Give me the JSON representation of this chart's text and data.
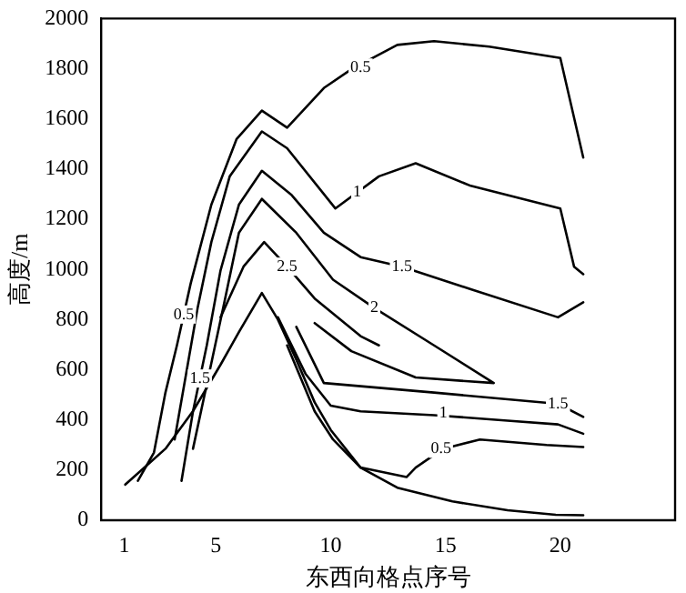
{
  "chart_data": {
    "type": "line",
    "xlabel": "东西向格点序号",
    "ylabel": "高度/m",
    "xlim": [
      0,
      25
    ],
    "xticks": [
      1,
      5,
      10,
      15,
      20
    ],
    "ylim": [
      0,
      2000
    ],
    "yticks": [
      0,
      200,
      400,
      600,
      800,
      1000,
      1200,
      1400,
      1600,
      1800,
      2000
    ],
    "grid": false,
    "legend": false,
    "marker": "none",
    "line_style": "solid",
    "series": [
      {
        "color": "#000000",
        "x": [
          1.05,
          2.8,
          4.0,
          5.2,
          6.0,
          7.0,
          7.7,
          8.5,
          9.3,
          10.0,
          11.3,
          12.9,
          15.3,
          17.7,
          19.8,
          21.0
        ],
        "values": [
          142,
          285,
          435,
          620,
          750,
          906,
          800,
          640,
          470,
          360,
          210,
          130,
          75,
          40,
          22,
          20
        ]
      },
      {
        "color": "#000000",
        "x": [
          1.6,
          2.3,
          2.8,
          3.3,
          3.9,
          4.8,
          5.9,
          7.0,
          8.1,
          9.7,
          10.9,
          12.9,
          14.5,
          16.9,
          20.0,
          21.0
        ],
        "values": [
          157,
          270,
          509,
          697,
          944,
          1258,
          1520,
          1633,
          1565,
          1723,
          1798,
          1895,
          1910,
          1888,
          1843,
          1446
        ]
      },
      {
        "color": "#000000",
        "x": [
          3.2,
          3.7,
          4.2,
          4.8,
          5.6,
          7.0,
          8.1,
          10.2,
          12.1,
          13.7,
          16.1,
          20.0,
          20.6,
          21.0
        ],
        "values": [
          322,
          584,
          846,
          1109,
          1371,
          1550,
          1483,
          1243,
          1371,
          1423,
          1333,
          1243,
          1011,
          981
        ]
      },
      {
        "color": "#000000",
        "x": [
          3.5,
          4.0,
          4.6,
          5.2,
          6.0,
          7.0,
          8.3,
          9.7,
          11.3,
          13.1,
          16.1,
          19.9,
          21.0
        ],
        "values": [
          157,
          434,
          697,
          996,
          1258,
          1393,
          1296,
          1146,
          1049,
          1011,
          921,
          809,
          869
        ]
      },
      {
        "color": "#000000",
        "x": [
          4.0,
          4.7,
          5.4,
          6.0,
          7.0,
          8.5,
          10.1,
          11.9,
          14.5,
          17.1,
          13.7,
          10.9,
          9.3
        ],
        "values": [
          285,
          584,
          884,
          1146,
          1281,
          1146,
          959,
          846,
          697,
          547,
          569,
          674,
          786
        ]
      },
      {
        "color": "#000000",
        "x": [
          5.2,
          6.2,
          7.1,
          8.1,
          9.3,
          11.3,
          12.1
        ],
        "values": [
          809,
          1011,
          1109,
          1011,
          884,
          734,
          697
        ]
      },
      {
        "color": "#000000",
        "x": [
          8.5,
          9.7,
          14.5,
          19.9,
          21.0
        ],
        "values": [
          771,
          547,
          509,
          464,
          412
        ]
      },
      {
        "color": "#000000",
        "x": [
          7.7,
          8.9,
          10.0,
          11.3,
          14.5,
          17.7,
          19.9,
          21.0
        ],
        "values": [
          809,
          584,
          457,
          434,
          419,
          397,
          382,
          345
        ]
      },
      {
        "color": "#000000",
        "x": [
          8.1,
          9.3,
          10.1,
          11.3,
          13.3,
          13.7,
          14.9,
          16.5,
          19.4,
          21.0
        ],
        "values": [
          697,
          434,
          322,
          210,
          172,
          210,
          285,
          322,
          300,
          292
        ]
      }
    ],
    "annotations": [
      {
        "text": "0.5",
        "x": 11.3,
        "y": 1805
      },
      {
        "text": "1",
        "x": 11.15,
        "y": 1307
      },
      {
        "text": "1.5",
        "x": 13.1,
        "y": 1011
      },
      {
        "text": "2",
        "x": 11.9,
        "y": 846
      },
      {
        "text": "2.5",
        "x": 8.1,
        "y": 1011
      },
      {
        "text": "0.5",
        "x": 3.6,
        "y": 820
      },
      {
        "text": "1.5",
        "x": 4.3,
        "y": 565
      },
      {
        "text": "1.5",
        "x": 19.9,
        "y": 464
      },
      {
        "text": "1",
        "x": 14.9,
        "y": 427
      },
      {
        "text": "0.5",
        "x": 14.8,
        "y": 285
      }
    ]
  }
}
